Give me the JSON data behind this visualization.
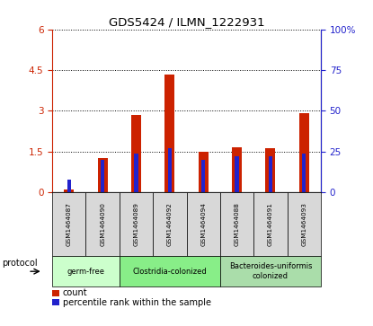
{
  "title": "GDS5424 / ILMN_1222931",
  "samples": [
    "GSM1464087",
    "GSM1464090",
    "GSM1464089",
    "GSM1464092",
    "GSM1464094",
    "GSM1464088",
    "GSM1464091",
    "GSM1464093"
  ],
  "count_values": [
    0.12,
    1.25,
    2.85,
    4.35,
    1.48,
    1.65,
    1.62,
    2.9
  ],
  "percentile_values": [
    8,
    20,
    24,
    27,
    20,
    22,
    22,
    24
  ],
  "ylim_left": [
    0,
    6
  ],
  "ylim_right": [
    0,
    100
  ],
  "yticks_left": [
    0,
    1.5,
    3.0,
    4.5,
    6.0
  ],
  "ytick_labels_left": [
    "0",
    "1.5",
    "3",
    "4.5",
    "6"
  ],
  "yticks_right": [
    0,
    25,
    50,
    75,
    100
  ],
  "ytick_labels_right": [
    "0",
    "25",
    "50",
    "75",
    "100%"
  ],
  "bar_color": "#cc2200",
  "percentile_color": "#2222cc",
  "grid_color": "#000000",
  "protocol_groups": [
    {
      "label": "germ-free",
      "start": 0,
      "end": 2,
      "color": "#ccffcc"
    },
    {
      "label": "Clostridia-colonized",
      "start": 2,
      "end": 5,
      "color": "#88ee88"
    },
    {
      "label": "Bacteroides-uniformis\ncolonized",
      "start": 5,
      "end": 8,
      "color": "#aaddaa"
    }
  ],
  "bar_width": 0.3,
  "percentile_bar_width": 0.12,
  "background_color": "#ffffff",
  "tick_bg_color": "#d8d8d8",
  "legend_count_label": "count",
  "legend_percentile_label": "percentile rank within the sample",
  "protocol_label": "protocol",
  "left_label_color": "#cc2200",
  "right_label_color": "#2222cc"
}
